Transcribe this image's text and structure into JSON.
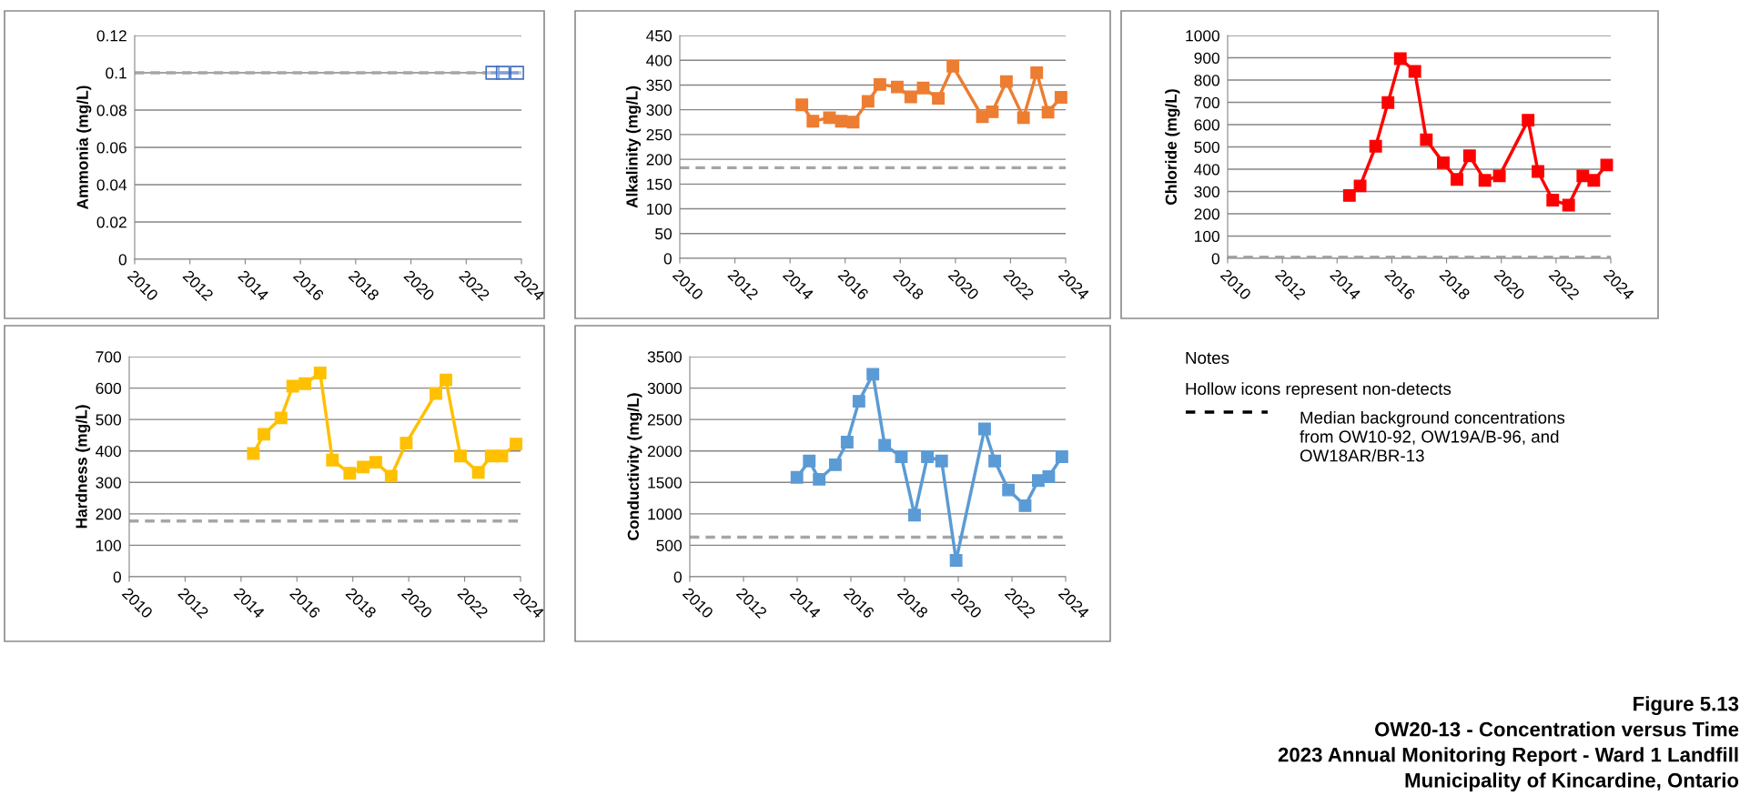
{
  "chart_data": [
    {
      "type": "line",
      "ylabel": "Ammonia (mg/L)",
      "xlim": [
        2010,
        2024
      ],
      "xticks": [
        2010,
        2012,
        2014,
        2016,
        2018,
        2020,
        2022,
        2024
      ],
      "ylim": [
        0,
        0.12
      ],
      "yticks": [
        0,
        0.02,
        0.04,
        0.06,
        0.08,
        0.1,
        0.12
      ],
      "grid": "y",
      "marker": "square",
      "line_style": "solid",
      "ref_lines": [
        {
          "axis": "y",
          "value": 0.1,
          "color": "#a6a6a6",
          "line_style": "dashed"
        }
      ],
      "series": [
        {
          "color": "#4472c4",
          "colors": [
            "#ffffff",
            "#ffffff",
            "#ffffff"
          ],
          "x": [
            2022.95,
            2023.33,
            2023.84
          ],
          "values": [
            0.1,
            0.1,
            0.1
          ]
        }
      ]
    },
    {
      "type": "line",
      "ylabel": "Alkalinity (mg/L)",
      "xlim": [
        2010,
        2024
      ],
      "xticks": [
        2010,
        2012,
        2014,
        2016,
        2018,
        2020,
        2022,
        2024
      ],
      "ylim": [
        0,
        450
      ],
      "yticks": [
        0,
        50,
        100,
        150,
        200,
        250,
        300,
        350,
        400,
        450
      ],
      "grid": "y",
      "marker": "square",
      "line_style": "solid",
      "ref_lines": [
        {
          "axis": "y",
          "value": 183,
          "color": "#a6a6a6",
          "line_style": "dashed"
        }
      ],
      "series": [
        {
          "color": "#ed7d31",
          "x": [
            2014.43,
            2014.83,
            2015.43,
            2015.86,
            2016.29,
            2016.83,
            2017.26,
            2017.89,
            2018.38,
            2018.83,
            2019.38,
            2019.91,
            2020.98,
            2021.34,
            2021.85,
            2022.47,
            2022.95,
            2023.36,
            2023.83
          ],
          "values": [
            310,
            277,
            284,
            277,
            275,
            317,
            351,
            346,
            326,
            344,
            323,
            388,
            286,
            296,
            357,
            284,
            375,
            295,
            325
          ]
        }
      ]
    },
    {
      "type": "line",
      "ylabel": "Chloride (mg/L)",
      "xlim": [
        2010,
        2024
      ],
      "xticks": [
        2010,
        2012,
        2014,
        2016,
        2018,
        2020,
        2022,
        2024
      ],
      "ylim": [
        0,
        1000
      ],
      "yticks": [
        0,
        100,
        200,
        300,
        400,
        500,
        600,
        700,
        800,
        900,
        1000
      ],
      "grid": "y",
      "marker": "square",
      "line_style": "solid",
      "ref_lines": [
        {
          "axis": "y",
          "value": 5,
          "color": "#a6a6a6",
          "line_style": "dashed"
        }
      ],
      "series": [
        {
          "color": "#ff0000",
          "x": [
            2014.45,
            2014.84,
            2015.41,
            2015.86,
            2016.31,
            2016.84,
            2017.26,
            2017.88,
            2018.38,
            2018.84,
            2019.4,
            2019.93,
            2020.98,
            2021.34,
            2021.88,
            2022.46,
            2022.98,
            2023.38,
            2023.85
          ],
          "values": [
            282,
            325,
            503,
            699,
            896,
            839,
            532,
            429,
            354,
            460,
            350,
            370,
            620,
            390,
            261,
            239,
            370,
            350,
            419
          ]
        }
      ]
    },
    {
      "type": "line",
      "ylabel": "Hardness (mg/L)",
      "xlim": [
        2010,
        2024
      ],
      "xticks": [
        2010,
        2012,
        2014,
        2016,
        2018,
        2020,
        2022,
        2024
      ],
      "ylim": [
        0,
        700
      ],
      "yticks": [
        0,
        100,
        200,
        300,
        400,
        500,
        600,
        700
      ],
      "grid": "y",
      "marker": "square",
      "line_style": "solid",
      "ref_lines": [
        {
          "axis": "y",
          "value": 177,
          "color": "#a6a6a6",
          "line_style": "dashed"
        }
      ],
      "series": [
        {
          "color": "#ffc000",
          "x": [
            2014.44,
            2014.82,
            2015.43,
            2015.85,
            2016.29,
            2016.83,
            2017.27,
            2017.89,
            2018.37,
            2018.82,
            2019.37,
            2019.91,
            2020.97,
            2021.33,
            2021.85,
            2022.49,
            2022.95,
            2023.33,
            2023.84
          ],
          "values": [
            392,
            453,
            505,
            606,
            614,
            648,
            371,
            329,
            349,
            364,
            320,
            425,
            583,
            626,
            384,
            332,
            384,
            384,
            422
          ]
        }
      ]
    },
    {
      "type": "line",
      "ylabel": "Conductivity (mg/L)",
      "xlim": [
        2010,
        2024
      ],
      "xticks": [
        2010,
        2012,
        2014,
        2016,
        2018,
        2020,
        2022,
        2024
      ],
      "ylim": [
        0,
        3500
      ],
      "yticks": [
        0,
        500,
        1000,
        1500,
        2000,
        2500,
        3000,
        3500
      ],
      "grid": "y",
      "marker": "square",
      "line_style": "solid",
      "ref_lines": [
        {
          "axis": "y",
          "value": 630,
          "color": "#a6a6a6",
          "line_style": "dashed"
        }
      ],
      "series": [
        {
          "color": "#5b9bd5",
          "x": [
            2013.99,
            2014.45,
            2014.82,
            2015.42,
            2015.86,
            2016.3,
            2016.82,
            2017.26,
            2017.88,
            2018.37,
            2018.85,
            2019.38,
            2019.92,
            2020.98,
            2021.36,
            2021.87,
            2022.49,
            2022.98,
            2023.37,
            2023.86
          ],
          "values": [
            1580,
            1840,
            1550,
            1780,
            2140,
            2790,
            3220,
            2090,
            1910,
            980,
            1910,
            1840,
            260,
            2350,
            1840,
            1380,
            1130,
            1530,
            1590,
            1910
          ]
        }
      ]
    },
    {
      "type": "other",
      "title": "Figure 5.13\nOW20-13 - Concentration versus Time\n2023 Annual Monitoring Report - Ward 1 Landfill\nMunicipality of Kincardine, Ontario",
      "annotations": [
        "Notes",
        "Hollow icons represent non-detects",
        "Median background concentrations\nfrom OW10-92, OW19A/B-96, and\nOW18AR/BR-13"
      ]
    }
  ]
}
